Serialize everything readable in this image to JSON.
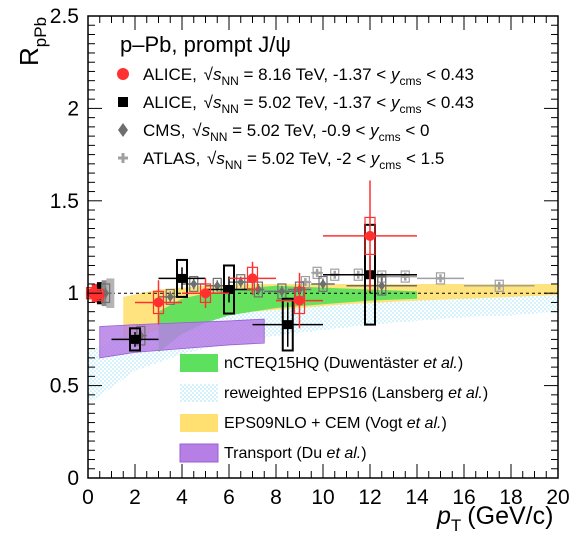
{
  "chart_data": {
    "type": "scatter",
    "xlabel_main": "p",
    "xlabel_sub": "T",
    "xlabel_unit": "(GeV/c)",
    "ylabel_main": "R",
    "ylabel_sub": "pPb",
    "xlim": [
      0,
      20
    ],
    "ylim": [
      0,
      2.5
    ],
    "xticks": [
      "0",
      "2",
      "4",
      "6",
      "8",
      "10",
      "12",
      "14",
      "16",
      "18",
      "20"
    ],
    "yticks": [
      "0",
      "0.5",
      "1",
      "1.5",
      "2",
      "2.5"
    ],
    "reference_line_y": 1,
    "header": "p–Pb, prompt J/ψ",
    "legend_points": [
      {
        "pre": "ALICE, ",
        "sqrt": "s",
        "sub": "NN",
        "rest": " = 8.16 TeV,  -1.37 < y",
        "ysub": "cms",
        "end": " < 0.43",
        "color": "#ff3030",
        "marker": "circle"
      },
      {
        "pre": "ALICE, ",
        "sqrt": "s",
        "sub": "NN",
        "rest": " = 5.02 TeV,  -1.37 < y",
        "ysub": "cms",
        "end": " < 0.43",
        "color": "#000000",
        "marker": "square"
      },
      {
        "pre": "CMS, ",
        "sqrt": "s",
        "sub": "NN",
        "rest": " = 5.02 TeV,  -0.9 < y",
        "ysub": "cms",
        "end": " < 0",
        "color": "#6e6e6e",
        "marker": "diamond"
      },
      {
        "pre": "ATLAS, ",
        "sqrt": "s",
        "sub": "NN",
        "rest": " = 5.02 TeV,  -2 < y",
        "ysub": "cms",
        "end": " < 1.5",
        "color": "#a0a0a0",
        "marker": "cross"
      }
    ],
    "legend_models": [
      {
        "plain": "nCTEQ15HQ (Duwentäster ",
        "italic": "et al.",
        "tail": ")",
        "color": "#5de05d"
      },
      {
        "plain": "reweighted EPPS16 (Lansberg ",
        "italic": "et al.",
        "tail": ")",
        "color": "#bfeefd"
      },
      {
        "plain": "EPS09NLO + CEM (Vogt ",
        "italic": "et al.",
        "tail": ")",
        "color": "#ffe070"
      },
      {
        "plain": "Transport (Du ",
        "italic": "et al.",
        "tail": ")",
        "color": "#b57fe6"
      }
    ],
    "series": [
      {
        "name": "ALICE 8.16 TeV",
        "color": "#ff3030",
        "x": [
          0.15,
          0.45,
          3,
          5,
          7,
          9,
          12
        ],
        "y": [
          1.0,
          0.99,
          0.95,
          1.0,
          1.08,
          0.96,
          1.31
        ],
        "xerr": [
          0.15,
          0.15,
          1,
          1,
          1,
          1,
          2
        ],
        "yerr": [
          0.02,
          0.02,
          0.12,
          0.08,
          0.09,
          0.15,
          0.3
        ],
        "syst": [
          0.03,
          0.03,
          0.06,
          0.05,
          0.06,
          0.07,
          0.1
        ]
      },
      {
        "name": "ALICE 5.02 TeV",
        "color": "#000000",
        "x": [
          2,
          4,
          6,
          8.5,
          12
        ],
        "y": [
          0.75,
          1.08,
          1.02,
          0.83,
          1.1
        ],
        "xerr": [
          1,
          1,
          1,
          1.5,
          2
        ],
        "yerr": [
          0.04,
          0.06,
          0.07,
          0.12,
          0.1
        ],
        "syst": [
          0.06,
          0.1,
          0.13,
          0.14,
          0.27
        ]
      },
      {
        "name": "CMS 5.02 TeV",
        "color": "#6e6e6e",
        "x": [
          0.75,
          2.25,
          3.5,
          4.5,
          5.5,
          6.5,
          7.25,
          8.25,
          9.0,
          10.0,
          12.5
        ],
        "y": [
          1.0,
          0.77,
          0.98,
          1.05,
          1.04,
          1.06,
          1.02,
          1.01,
          1.02,
          1.05,
          1.04
        ],
        "xerr": [
          0.25,
          0.25,
          0.5,
          0.5,
          0.5,
          0.5,
          0.25,
          0.75,
          0.5,
          0.5,
          1.5
        ],
        "yerr": [
          0.03,
          0.03,
          0.03,
          0.03,
          0.03,
          0.03,
          0.03,
          0.03,
          0.03,
          0.03,
          0.05
        ],
        "syst": [
          0.05,
          0.05,
          0.04,
          0.04,
          0.04,
          0.04,
          0.04,
          0.04,
          0.04,
          0.04,
          0.05
        ]
      },
      {
        "name": "ATLAS 5.02 TeV",
        "color": "#a0a0a0",
        "x": [
          9.25,
          9.75,
          10.5,
          11.5,
          12.5,
          13.5,
          15,
          17.5
        ],
        "y": [
          1.06,
          1.11,
          1.1,
          1.1,
          1.09,
          1.09,
          1.08,
          1.04
        ],
        "xerr": [
          0.25,
          0.25,
          0.5,
          0.5,
          0.5,
          0.5,
          1,
          1.5
        ],
        "yerr": [
          0.02,
          0.02,
          0.02,
          0.02,
          0.02,
          0.02,
          0.02,
          0.02
        ],
        "syst": [
          0.03,
          0.03,
          0.03,
          0.03,
          0.03,
          0.03,
          0.03,
          0.03
        ]
      }
    ],
    "bands": [
      {
        "name": "reweighted EPPS16",
        "color": "#bfeefd",
        "x": [
          0,
          2,
          4,
          6,
          8,
          10,
          12,
          14,
          16,
          18,
          20
        ],
        "upper": [
          0.68,
          0.8,
          0.86,
          0.9,
          0.93,
          0.95,
          0.97,
          0.98,
          0.99,
          1.0,
          1.0
        ],
        "lower": [
          0.4,
          0.58,
          0.67,
          0.73,
          0.77,
          0.8,
          0.83,
          0.85,
          0.87,
          0.88,
          0.9
        ]
      },
      {
        "name": "EPS09NLO + CEM",
        "color": "#ffe070",
        "x": [
          1.5,
          3,
          5,
          7,
          9,
          11,
          14,
          16,
          18,
          20
        ],
        "upper": [
          0.98,
          1.02,
          1.04,
          1.05,
          1.05,
          1.05,
          1.05,
          1.05,
          1.05,
          1.05
        ],
        "lower": [
          0.74,
          0.8,
          0.86,
          0.9,
          0.92,
          0.94,
          0.96,
          0.97,
          0.98,
          0.99
        ]
      },
      {
        "name": "nCTEQ15HQ",
        "color": "#5de05d",
        "x": [
          3,
          4,
          5,
          6,
          7,
          8,
          10,
          12,
          14
        ],
        "upper": [
          0.9,
          0.97,
          1.0,
          1.02,
          1.03,
          1.04,
          1.03,
          1.02,
          1.01
        ],
        "lower": [
          0.68,
          0.78,
          0.84,
          0.88,
          0.9,
          0.92,
          0.94,
          0.96,
          0.97
        ]
      },
      {
        "name": "Transport",
        "color": "#b57fe6",
        "x": [
          0.5,
          2,
          4,
          6,
          7.5
        ],
        "upper": [
          0.82,
          0.83,
          0.84,
          0.85,
          0.86
        ],
        "lower": [
          0.65,
          0.68,
          0.7,
          0.72,
          0.73
        ]
      }
    ],
    "global_boxes": [
      {
        "x": 0.33,
        "lower": 0.95,
        "upper": 1.05,
        "color": "#ff3030"
      },
      {
        "x": 0.55,
        "lower": 0.94,
        "upper": 1.06,
        "color": "#000000"
      },
      {
        "x": 0.75,
        "lower": 0.93,
        "upper": 1.07,
        "color": "#8a8a8a"
      },
      {
        "x": 0.95,
        "lower": 0.92,
        "upper": 1.08,
        "color": "#b4b4b4"
      }
    ]
  }
}
